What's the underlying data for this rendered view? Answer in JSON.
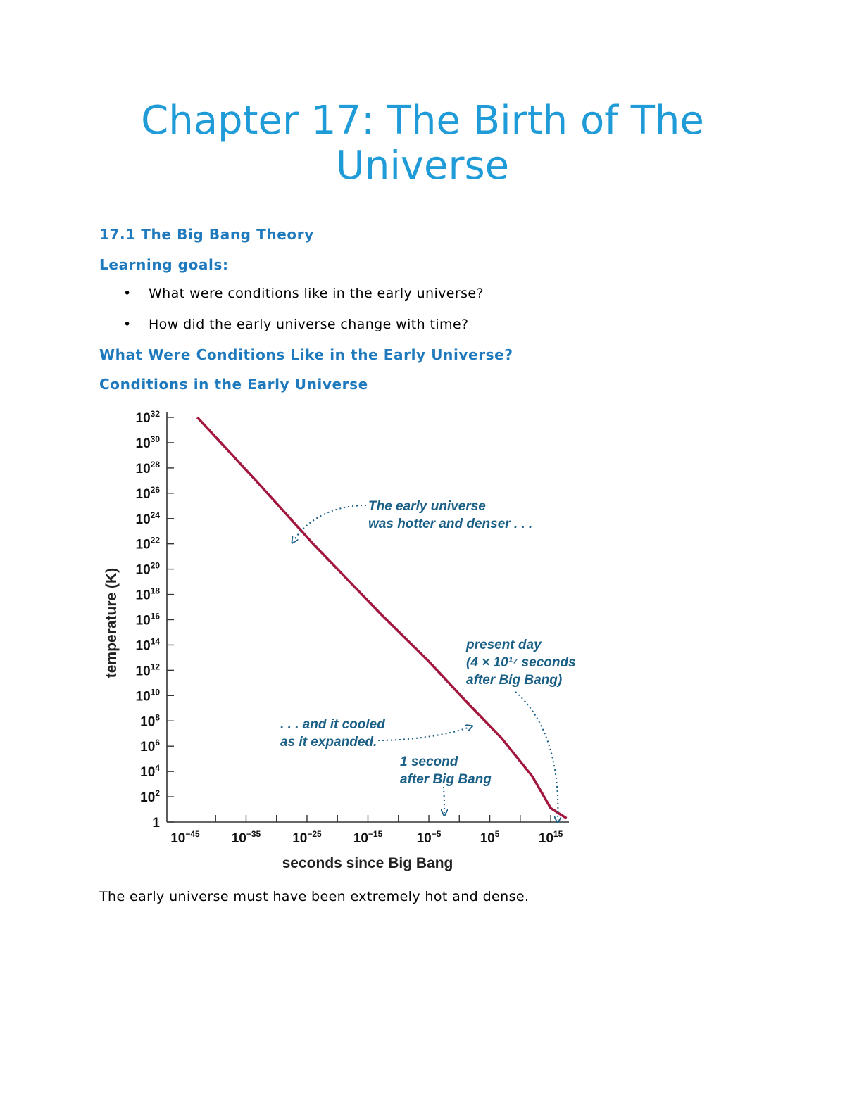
{
  "title": "Chapter 17: The Birth of The Universe",
  "section": "17.1 The Big Bang Theory",
  "learning_goals_heading": "Learning goals:",
  "learning_goals": [
    "What were conditions like in the early universe?",
    "How did the early universe change with time?"
  ],
  "subheading_1": "What Were Conditions Like in the Early Universe?",
  "subheading_2": "Conditions in the Early Universe",
  "body_text": "The early universe must have been extremely hot and dense.",
  "colors": {
    "heading": "#1f9bd7",
    "subheading": "#1f79bd",
    "curve": "#a3173f",
    "annotation": "#1a5f86"
  },
  "chart_data": {
    "type": "line",
    "x_scale": "log",
    "y_scale": "log",
    "xlabel": "seconds since Big Bang",
    "ylabel": "temperature (K)",
    "xlim": [
      -48,
      18
    ],
    "ylim": [
      0,
      32
    ],
    "x_ticks": [
      {
        "exp": -45,
        "label": "10",
        "sup": "−45"
      },
      {
        "exp": -35,
        "label": "10",
        "sup": "−35"
      },
      {
        "exp": -25,
        "label": "10",
        "sup": "−25"
      },
      {
        "exp": -15,
        "label": "10",
        "sup": "−15"
      },
      {
        "exp": -5,
        "label": "10",
        "sup": "−5"
      },
      {
        "exp": 5,
        "label": "10",
        "sup": "5"
      },
      {
        "exp": 15,
        "label": "10",
        "sup": "15"
      }
    ],
    "y_ticks": [
      {
        "exp": 32,
        "label": "10",
        "sup": "32"
      },
      {
        "exp": 30,
        "label": "10",
        "sup": "30"
      },
      {
        "exp": 28,
        "label": "10",
        "sup": "28"
      },
      {
        "exp": 26,
        "label": "10",
        "sup": "26"
      },
      {
        "exp": 24,
        "label": "10",
        "sup": "24"
      },
      {
        "exp": 22,
        "label": "10",
        "sup": "22"
      },
      {
        "exp": 20,
        "label": "10",
        "sup": "20"
      },
      {
        "exp": 18,
        "label": "10",
        "sup": "18"
      },
      {
        "exp": 16,
        "label": "10",
        "sup": "16"
      },
      {
        "exp": 14,
        "label": "10",
        "sup": "14"
      },
      {
        "exp": 12,
        "label": "10",
        "sup": "12"
      },
      {
        "exp": 10,
        "label": "10",
        "sup": "10"
      },
      {
        "exp": 8,
        "label": "10",
        "sup": "8"
      },
      {
        "exp": 6,
        "label": "10",
        "sup": "6"
      },
      {
        "exp": 4,
        "label": "10",
        "sup": "4"
      },
      {
        "exp": 2,
        "label": "10",
        "sup": "2"
      },
      {
        "exp": 0,
        "label": "1",
        "sup": ""
      }
    ],
    "series": [
      {
        "points": [
          {
            "x": -43,
            "y": 32
          },
          {
            "x": -33,
            "y": 26.8
          },
          {
            "x": -24,
            "y": 22
          },
          {
            "x": -13,
            "y": 16.5
          },
          {
            "x": -5,
            "y": 12.7
          },
          {
            "x": 1,
            "y": 9.6
          },
          {
            "x": 7,
            "y": 6.6
          },
          {
            "x": 12,
            "y": 3.6
          },
          {
            "x": 15,
            "y": 1.1
          },
          {
            "x": 17.6,
            "y": 0.3
          }
        ]
      }
    ],
    "annotations": [
      {
        "lines": [
          "The early universe",
          "was hotter and denser . . ."
        ]
      },
      {
        "lines": [
          "present day",
          "(4 × 10¹⁷ seconds",
          "after Big Bang)"
        ]
      },
      {
        "lines": [
          ". . . and it cooled",
          "as it expanded."
        ]
      },
      {
        "lines": [
          "1 second",
          "after Big Bang"
        ]
      }
    ]
  }
}
